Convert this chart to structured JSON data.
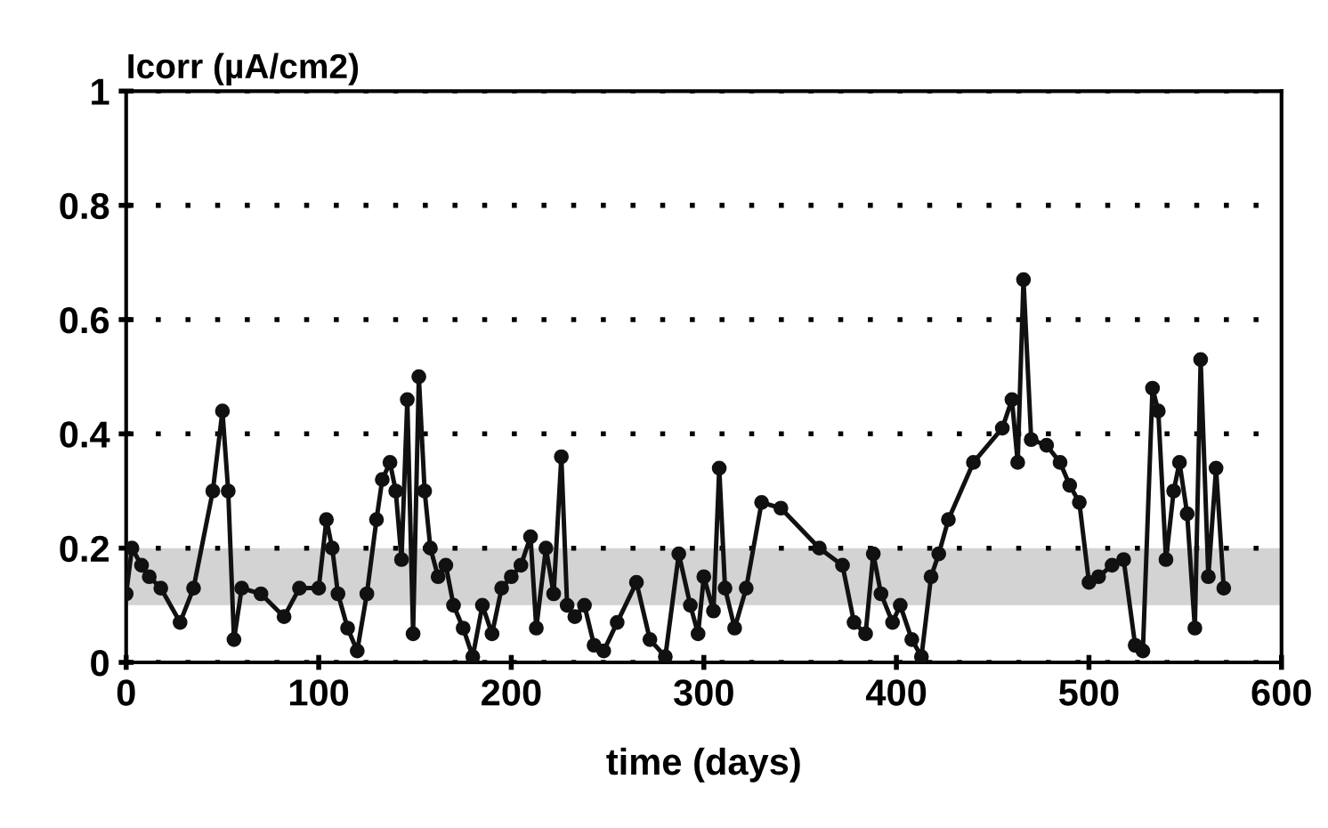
{
  "chart_data": {
    "type": "line",
    "ylabel": "Icorr (µA/cm2)",
    "xlabel": "time (days)",
    "x": [
      0,
      3,
      8,
      12,
      18,
      28,
      35,
      45,
      50,
      53,
      56,
      60,
      70,
      82,
      90,
      100,
      104,
      107,
      110,
      115,
      120,
      125,
      130,
      133,
      137,
      140,
      143,
      146,
      149,
      152,
      155,
      158,
      162,
      166,
      170,
      175,
      180,
      185,
      190,
      195,
      200,
      205,
      210,
      213,
      218,
      222,
      226,
      229,
      233,
      238,
      243,
      248,
      255,
      265,
      272,
      280,
      287,
      293,
      297,
      300,
      305,
      308,
      311,
      316,
      322,
      330,
      340,
      360,
      372,
      378,
      384,
      388,
      392,
      398,
      402,
      408,
      413,
      418,
      422,
      427,
      440,
      455,
      460,
      463,
      466,
      470,
      478,
      485,
      490,
      495,
      500,
      505,
      512,
      518,
      524,
      528,
      533,
      536,
      540,
      544,
      547,
      551,
      555,
      558,
      562,
      566,
      570
    ],
    "series": [
      {
        "color": "#111111",
        "values": [
          0.12,
          0.2,
          0.17,
          0.15,
          0.13,
          0.07,
          0.13,
          0.3,
          0.44,
          0.3,
          0.04,
          0.13,
          0.12,
          0.08,
          0.13,
          0.13,
          0.25,
          0.2,
          0.12,
          0.06,
          0.02,
          0.12,
          0.25,
          0.32,
          0.35,
          0.3,
          0.18,
          0.46,
          0.05,
          0.5,
          0.3,
          0.2,
          0.15,
          0.17,
          0.1,
          0.06,
          0.01,
          0.1,
          0.05,
          0.13,
          0.15,
          0.17,
          0.22,
          0.06,
          0.2,
          0.12,
          0.36,
          0.1,
          0.08,
          0.1,
          0.03,
          0.02,
          0.07,
          0.14,
          0.04,
          0.01,
          0.19,
          0.1,
          0.05,
          0.15,
          0.09,
          0.34,
          0.13,
          0.06,
          0.13,
          0.28,
          0.27,
          0.2,
          0.17,
          0.07,
          0.05,
          0.19,
          0.12,
          0.07,
          0.1,
          0.04,
          0.01,
          0.15,
          0.19,
          0.25,
          0.35,
          0.41,
          0.46,
          0.35,
          0.67,
          0.39,
          0.38,
          0.35,
          0.31,
          0.28,
          0.14,
          0.15,
          0.17,
          0.18,
          0.03,
          0.02,
          0.48,
          0.44,
          0.18,
          0.3,
          0.35,
          0.26,
          0.06,
          0.53,
          0.15,
          0.34,
          0.13
        ]
      }
    ],
    "xlim": [
      0,
      600
    ],
    "xticks": [
      0,
      100,
      200,
      300,
      400,
      500,
      600
    ],
    "ylim": [
      0,
      1
    ],
    "yticks": [
      0,
      0.2,
      0.4,
      0.6,
      0.8,
      1
    ],
    "bands": [
      {
        "axis": "y",
        "from": 0.1,
        "to": 0.2,
        "color": "#c8c8c8"
      }
    ],
    "grid": "y",
    "marker": "circle",
    "line_style": "solid"
  }
}
